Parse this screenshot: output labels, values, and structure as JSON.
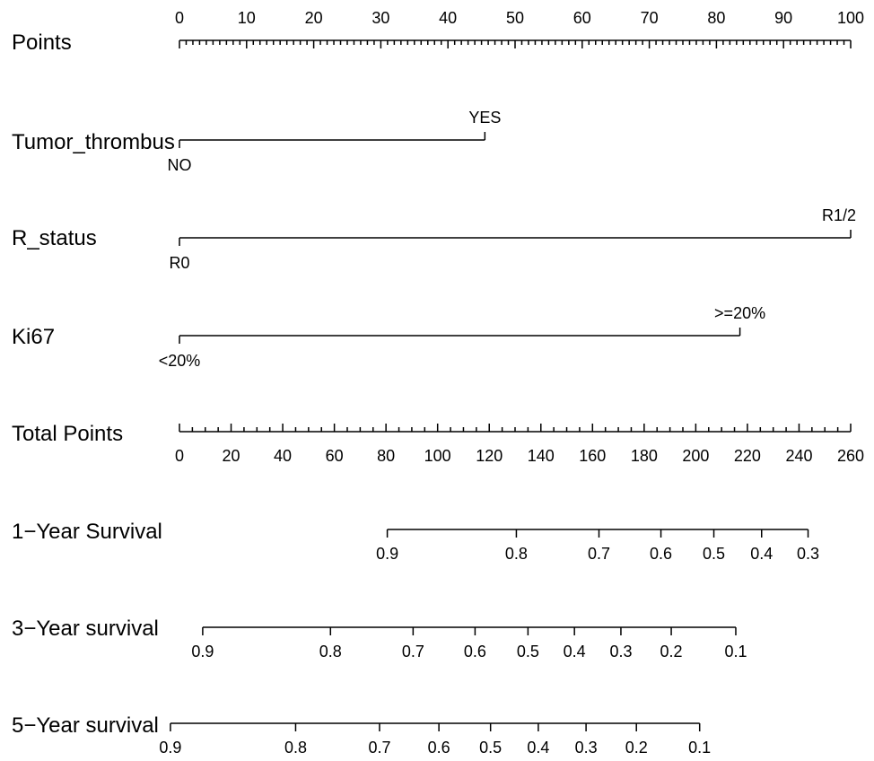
{
  "chart_data": {
    "type": "nomogram",
    "rows": [
      {
        "key": "points",
        "label": "Points",
        "kind": "scale",
        "ticks": [
          0,
          10,
          20,
          30,
          40,
          50,
          60,
          70,
          80,
          90,
          100
        ],
        "minor_step": 1,
        "labels_side": "above"
      },
      {
        "key": "tumor_thrombus",
        "label": "Tumor_thrombus",
        "kind": "categorical",
        "levels": [
          {
            "label": "NO",
            "points": 0,
            "side": "below"
          },
          {
            "label": "YES",
            "points": 45.5,
            "side": "above"
          }
        ]
      },
      {
        "key": "r_status",
        "label": "R_status",
        "kind": "categorical",
        "levels": [
          {
            "label": "R0",
            "points": 0,
            "side": "below"
          },
          {
            "label": "R1/2",
            "points": 100,
            "side": "above"
          }
        ]
      },
      {
        "key": "ki67",
        "label": "Ki67",
        "kind": "categorical",
        "levels": [
          {
            "label": "<20%",
            "points": 0,
            "side": "below"
          },
          {
            "label": ">=20%",
            "points": 83.5,
            "side": "above"
          }
        ]
      },
      {
        "key": "total_points",
        "label": "Total Points",
        "kind": "scale",
        "max_total": 260,
        "ticks": [
          0,
          20,
          40,
          60,
          80,
          100,
          120,
          140,
          160,
          180,
          200,
          220,
          240,
          260
        ],
        "minor_step": 5,
        "labels_side": "below"
      },
      {
        "key": "survival_1y",
        "label": "1−Year Survival",
        "kind": "probability",
        "ticks": [
          {
            "label": "0.9",
            "total_points": 80.5
          },
          {
            "label": "0.8",
            "total_points": 130.5
          },
          {
            "label": "0.7",
            "total_points": 162.5
          },
          {
            "label": "0.6",
            "total_points": 186.5
          },
          {
            "label": "0.5",
            "total_points": 207.0
          },
          {
            "label": "0.4",
            "total_points": 225.5
          },
          {
            "label": "0.3",
            "total_points": 243.5
          }
        ]
      },
      {
        "key": "survival_3y",
        "label": "3−Year survival",
        "kind": "probability",
        "ticks": [
          {
            "label": "0.9",
            "total_points": 9.0
          },
          {
            "label": "0.8",
            "total_points": 58.5
          },
          {
            "label": "0.7",
            "total_points": 90.5
          },
          {
            "label": "0.6",
            "total_points": 114.5
          },
          {
            "label": "0.5",
            "total_points": 135.0
          },
          {
            "label": "0.4",
            "total_points": 153.0
          },
          {
            "label": "0.3",
            "total_points": 171.0
          },
          {
            "label": "0.2",
            "total_points": 190.5
          },
          {
            "label": "0.1",
            "total_points": 215.5
          }
        ]
      },
      {
        "key": "survival_5y",
        "label": "5−Year survival",
        "kind": "probability",
        "ticks": [
          {
            "label": "0.9",
            "total_points": -3.5
          },
          {
            "label": "0.8",
            "total_points": 45.0
          },
          {
            "label": "0.7",
            "total_points": 77.5
          },
          {
            "label": "0.6",
            "total_points": 100.5
          },
          {
            "label": "0.5",
            "total_points": 120.5
          },
          {
            "label": "0.4",
            "total_points": 139.0
          },
          {
            "label": "0.3",
            "total_points": 157.5
          },
          {
            "label": "0.2",
            "total_points": 177.0
          },
          {
            "label": "0.1",
            "total_points": 201.5
          }
        ]
      }
    ]
  }
}
